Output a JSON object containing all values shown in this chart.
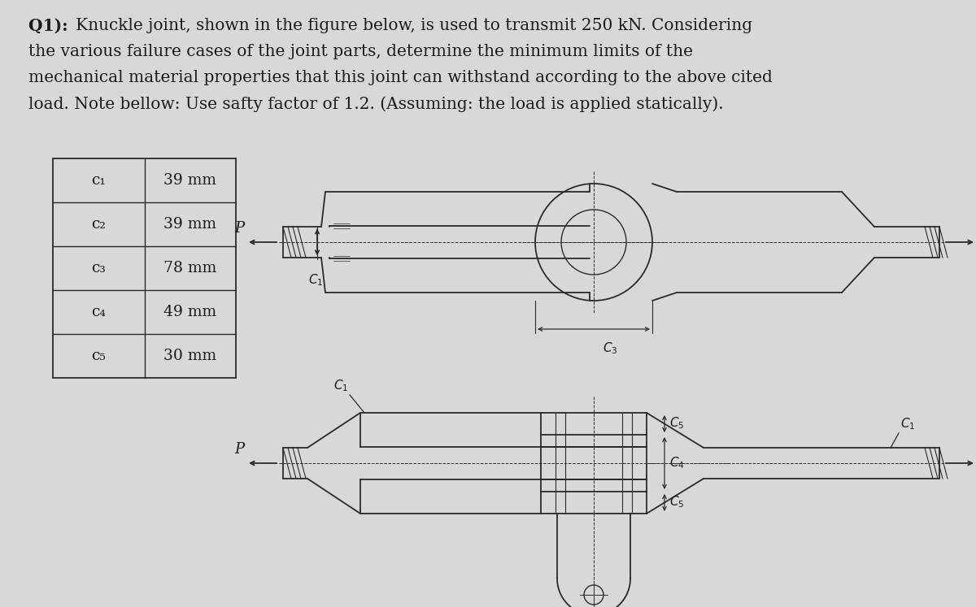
{
  "title_bold": "Q1): ",
  "title_rest": "Knuckle joint, shown in the figure below, is used to transmit 250 kN. Considering\nthe various failure cases of the joint parts, determine the minimum limits of the\nmechanical material properties that this joint can withstand according to the above cited\nload. Note bellow: Use safty factor of 1.2. (Assuming: the load is applied statically).",
  "table_labels": [
    "c₁",
    "c₂",
    "c₃",
    "c₄",
    "c₅"
  ],
  "table_values": [
    "39 mm",
    "39 mm",
    "78 mm",
    "49 mm",
    "30 mm"
  ],
  "bg_color": "#d8d8d8",
  "paper_color": "#e8e8e6",
  "text_color": "#1a1a1a",
  "table_border_color": "#444444",
  "line_color": "#2a2a2a",
  "font_size_title": 14.5,
  "font_size_table": 13.5,
  "font_size_labels": 11
}
